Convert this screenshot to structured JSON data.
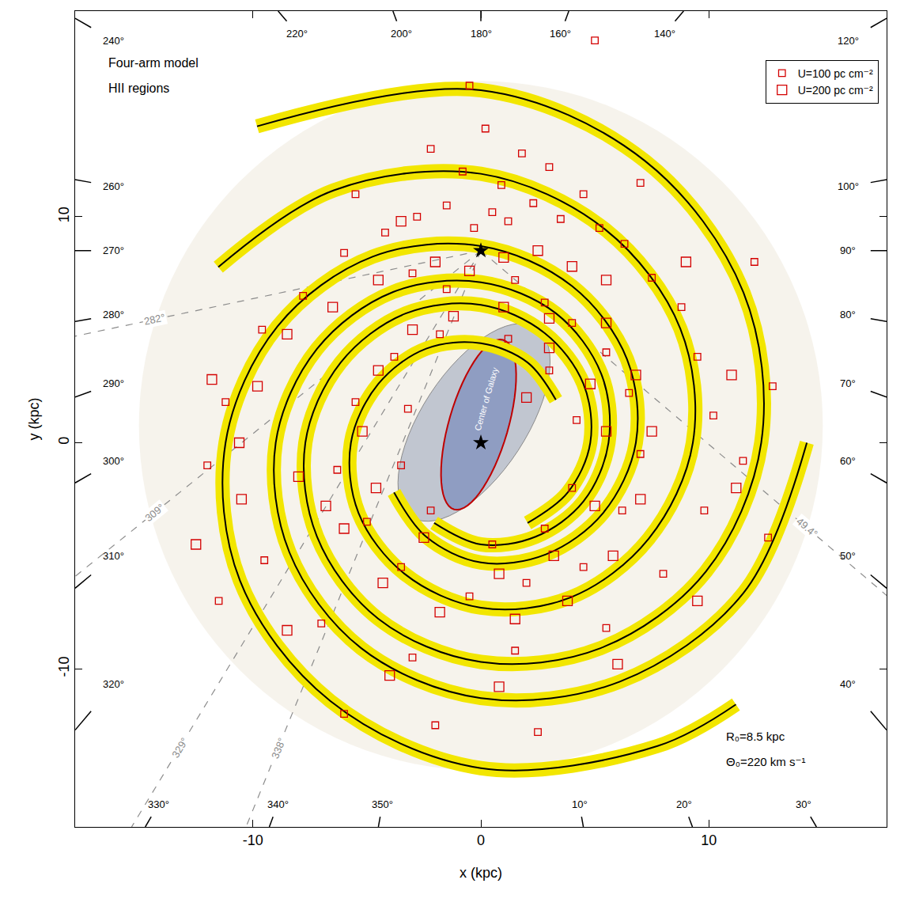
{
  "chart_data": {
    "type": "scatter",
    "title": "Four-arm model",
    "subtitle": "HII regions",
    "x_label": "x (kpc)",
    "y_label": "y (kpc)",
    "xlim": [
      -17.8,
      17.8
    ],
    "ylim": [
      -17,
      19.1
    ],
    "xticks": [
      -10,
      0,
      10
    ],
    "yticks": [
      -10,
      0,
      10
    ],
    "grid": false,
    "legend": "upper right",
    "series": [
      {
        "name": "U=100 pc cm⁻²",
        "U": 100,
        "color": "#d40000",
        "marker": "square-open",
        "x": [
          -0.3,
          0.5,
          1.2,
          -1.5,
          2.3,
          3.5,
          -2.8,
          0.9,
          -0.8,
          1.8,
          -2.2,
          3.0,
          0.2,
          4.5,
          5.2,
          6.3,
          7.5,
          8.8,
          9.5,
          10.2,
          -4.2,
          -6.0,
          -7.8,
          -9.6,
          -11.2,
          -12.0,
          -3.0,
          -1.5,
          1.5,
          2.8,
          4.0,
          5.5,
          6.5,
          7.0,
          6.2,
          4.5,
          2.0,
          -0.5,
          -3.5,
          -5.0,
          -6.3,
          -5.5,
          -3.8,
          -1.8,
          1.2,
          3.0,
          4.2,
          4.0,
          2.8,
          0.5,
          -2.2,
          -3.5,
          -3.2,
          8.0,
          9.8,
          11.5,
          12.8,
          5.5,
          1.5,
          -3.0,
          -7.0,
          -9.5,
          -2.0,
          2.5,
          -6.0,
          -11.5,
          12.6,
          5.0,
          7.0,
          -5.5,
          -0.5,
          12.0
        ],
        "y": [
          9.5,
          10.2,
          9.8,
          10.5,
          10.6,
          9.9,
          10.0,
          11.4,
          12.0,
          12.8,
          13.0,
          12.2,
          13.9,
          11.0,
          9.5,
          8.8,
          7.3,
          6.0,
          3.8,
          1.2,
          9.3,
          8.4,
          6.5,
          5.0,
          1.8,
          -1.0,
          7.5,
          6.8,
          7.2,
          6.2,
          5.3,
          4.0,
          2.2,
          -0.5,
          -3.0,
          -5.5,
          -6.2,
          -6.8,
          -5.5,
          -3.5,
          -1.2,
          1.8,
          3.8,
          4.8,
          4.6,
          3.2,
          1.0,
          -2.0,
          -3.8,
          -4.5,
          -3.0,
          -1.0,
          1.5,
          -5.8,
          -3.0,
          -0.8,
          2.5,
          -8.2,
          -9.2,
          -9.5,
          -8.0,
          -5.2,
          -12.5,
          -12.8,
          -12.0,
          -7.0,
          -4.2,
          17.8,
          11.5,
          11.0,
          15.8,
          8.0
        ]
      },
      {
        "name": "U=200 pc cm⁻²",
        "U": 200,
        "color": "#d40000",
        "marker": "square-open",
        "x": [
          1.0,
          2.5,
          4.0,
          5.5,
          -0.5,
          -2.0,
          -4.5,
          -6.5,
          -8.5,
          -9.8,
          -10.6,
          -10.5,
          -8.0,
          -6.8,
          -6.0,
          -4.3,
          -1.8,
          1.5,
          3.8,
          5.8,
          7.0,
          7.5,
          6.8,
          5.5,
          3.0,
          1.0,
          -1.2,
          -3.0,
          -4.5,
          -5.2,
          -4.6,
          -2.5,
          0.8,
          3.2,
          5.0,
          5.5,
          4.8,
          2.0,
          -8.5,
          -4.0,
          0.8,
          6.0,
          9.5,
          11.2,
          11.0,
          9.0,
          -11.8,
          -12.5,
          -3.5,
          3.0
        ],
        "y": [
          8.2,
          8.5,
          7.8,
          7.2,
          7.6,
          8.0,
          7.2,
          6.0,
          4.8,
          2.5,
          0.0,
          -2.5,
          -1.5,
          -2.8,
          -3.8,
          -6.2,
          -7.5,
          -7.8,
          -7.0,
          -5.0,
          -2.5,
          0.5,
          3.0,
          5.3,
          5.5,
          6.0,
          5.6,
          5.0,
          3.2,
          0.5,
          -2.0,
          -4.2,
          -5.8,
          -5.0,
          -2.8,
          0.5,
          2.6,
          2.0,
          -8.3,
          -10.3,
          -10.8,
          -9.8,
          -7.0,
          -2.0,
          3.0,
          8.0,
          2.8,
          -4.5,
          9.8,
          4.2
        ]
      }
    ],
    "arms": {
      "color": "#000000",
      "lines": [
        {
          "x": [
            -9.82,
            0,
            7.2,
            11.52,
            12.3,
            9.87,
            5.25,
            0,
            -4.5,
            -7.19,
            -7.7,
            -6.15,
            -3.3,
            0,
            2.8,
            4.5,
            4.8,
            3.81,
            2.05
          ],
          "y": [
            14.0,
            15.6,
            12.47,
            6.65,
            0,
            -5.7,
            -9.09,
            -9.7,
            -7.79,
            -4.15,
            0,
            3.55,
            5.72,
            6.1,
            4.85,
            2.6,
            0,
            -2.2,
            -3.55
          ]
        },
        {
          "x": [
            14.3,
            11.52,
            6.1,
            0,
            -5.25,
            -8.4,
            -9.0,
            -7.19,
            -3.85,
            0,
            3.3,
            5.28,
            5.6,
            4.5,
            2.4,
            0,
            -2.05
          ],
          "y": [
            0,
            -6.65,
            -10.57,
            -11.3,
            -9.09,
            -4.85,
            0,
            4.15,
            6.67,
            7.1,
            5.72,
            3.05,
            0,
            -2.6,
            -4.16,
            -4.5,
            -3.55
          ]
        },
        {
          "x": [
            -11.52,
            -6.45,
            0,
            5.45,
            8.75,
            9.3,
            7.36,
            3.95,
            0,
            -3.35,
            -5.37,
            -5.7,
            -4.5,
            -2.4,
            0,
            2.05,
            3.29
          ],
          "y": [
            7.77,
            11.17,
            11.9,
            9.44,
            5.05,
            0,
            -4.25,
            -6.84,
            -7.3,
            -5.8,
            -3.1,
            0,
            2.6,
            4.16,
            4.4,
            3.55,
            1.9
          ]
        },
        {
          "x": [
            11.19,
            7.75,
            0,
            -6.6,
            -10.57,
            -11.2,
            -8.92,
            -4.75,
            0,
            4.0,
            6.41,
            6.8,
            5.37,
            2.85,
            0,
            -2.4,
            -3.81
          ],
          "y": [
            -11.58,
            -13.42,
            -14.4,
            -11.43,
            -6.1,
            0,
            5.15,
            8.23,
            8.7,
            6.93,
            3.7,
            0,
            -3.1,
            -4.94,
            -5.3,
            -4.16,
            -2.2
          ]
        }
      ]
    },
    "stars": {
      "x": [
        0,
        0
      ],
      "y": [
        8.5,
        0
      ],
      "marker": "star",
      "color": "#000000"
    },
    "longitudes": {
      "values": [
        240,
        220,
        200,
        180,
        160,
        140,
        120,
        100,
        90,
        80,
        70,
        60,
        50,
        40,
        30,
        20,
        10,
        350,
        340,
        330,
        320,
        310,
        300,
        290,
        280,
        270,
        260
      ],
      "value_labels": [
        "240°",
        "220°",
        "200°",
        "180°",
        "160°",
        "140°",
        "120°",
        "100°",
        "90°",
        "80°",
        "70°",
        "60°",
        "50°",
        "40°",
        "30°",
        "20°",
        "10°",
        "350°",
        "340°",
        "330°",
        "320°",
        "310°",
        "300°",
        "290°",
        "280°",
        "270°",
        "260°"
      ],
      "color": "#000000"
    },
    "tangents": {
      "values": [
        282,
        309,
        329,
        338,
        49.4
      ],
      "value_labels": [
        "282°",
        "309°",
        "329°",
        "338°",
        "49.4°"
      ],
      "color": "#8c8c8c",
      "line_style": "dash"
    },
    "center_label": "Center of Galaxy",
    "notes": [
      "R₀=8.5 kpc",
      "Θ₀=220 km s⁻¹"
    ]
  }
}
